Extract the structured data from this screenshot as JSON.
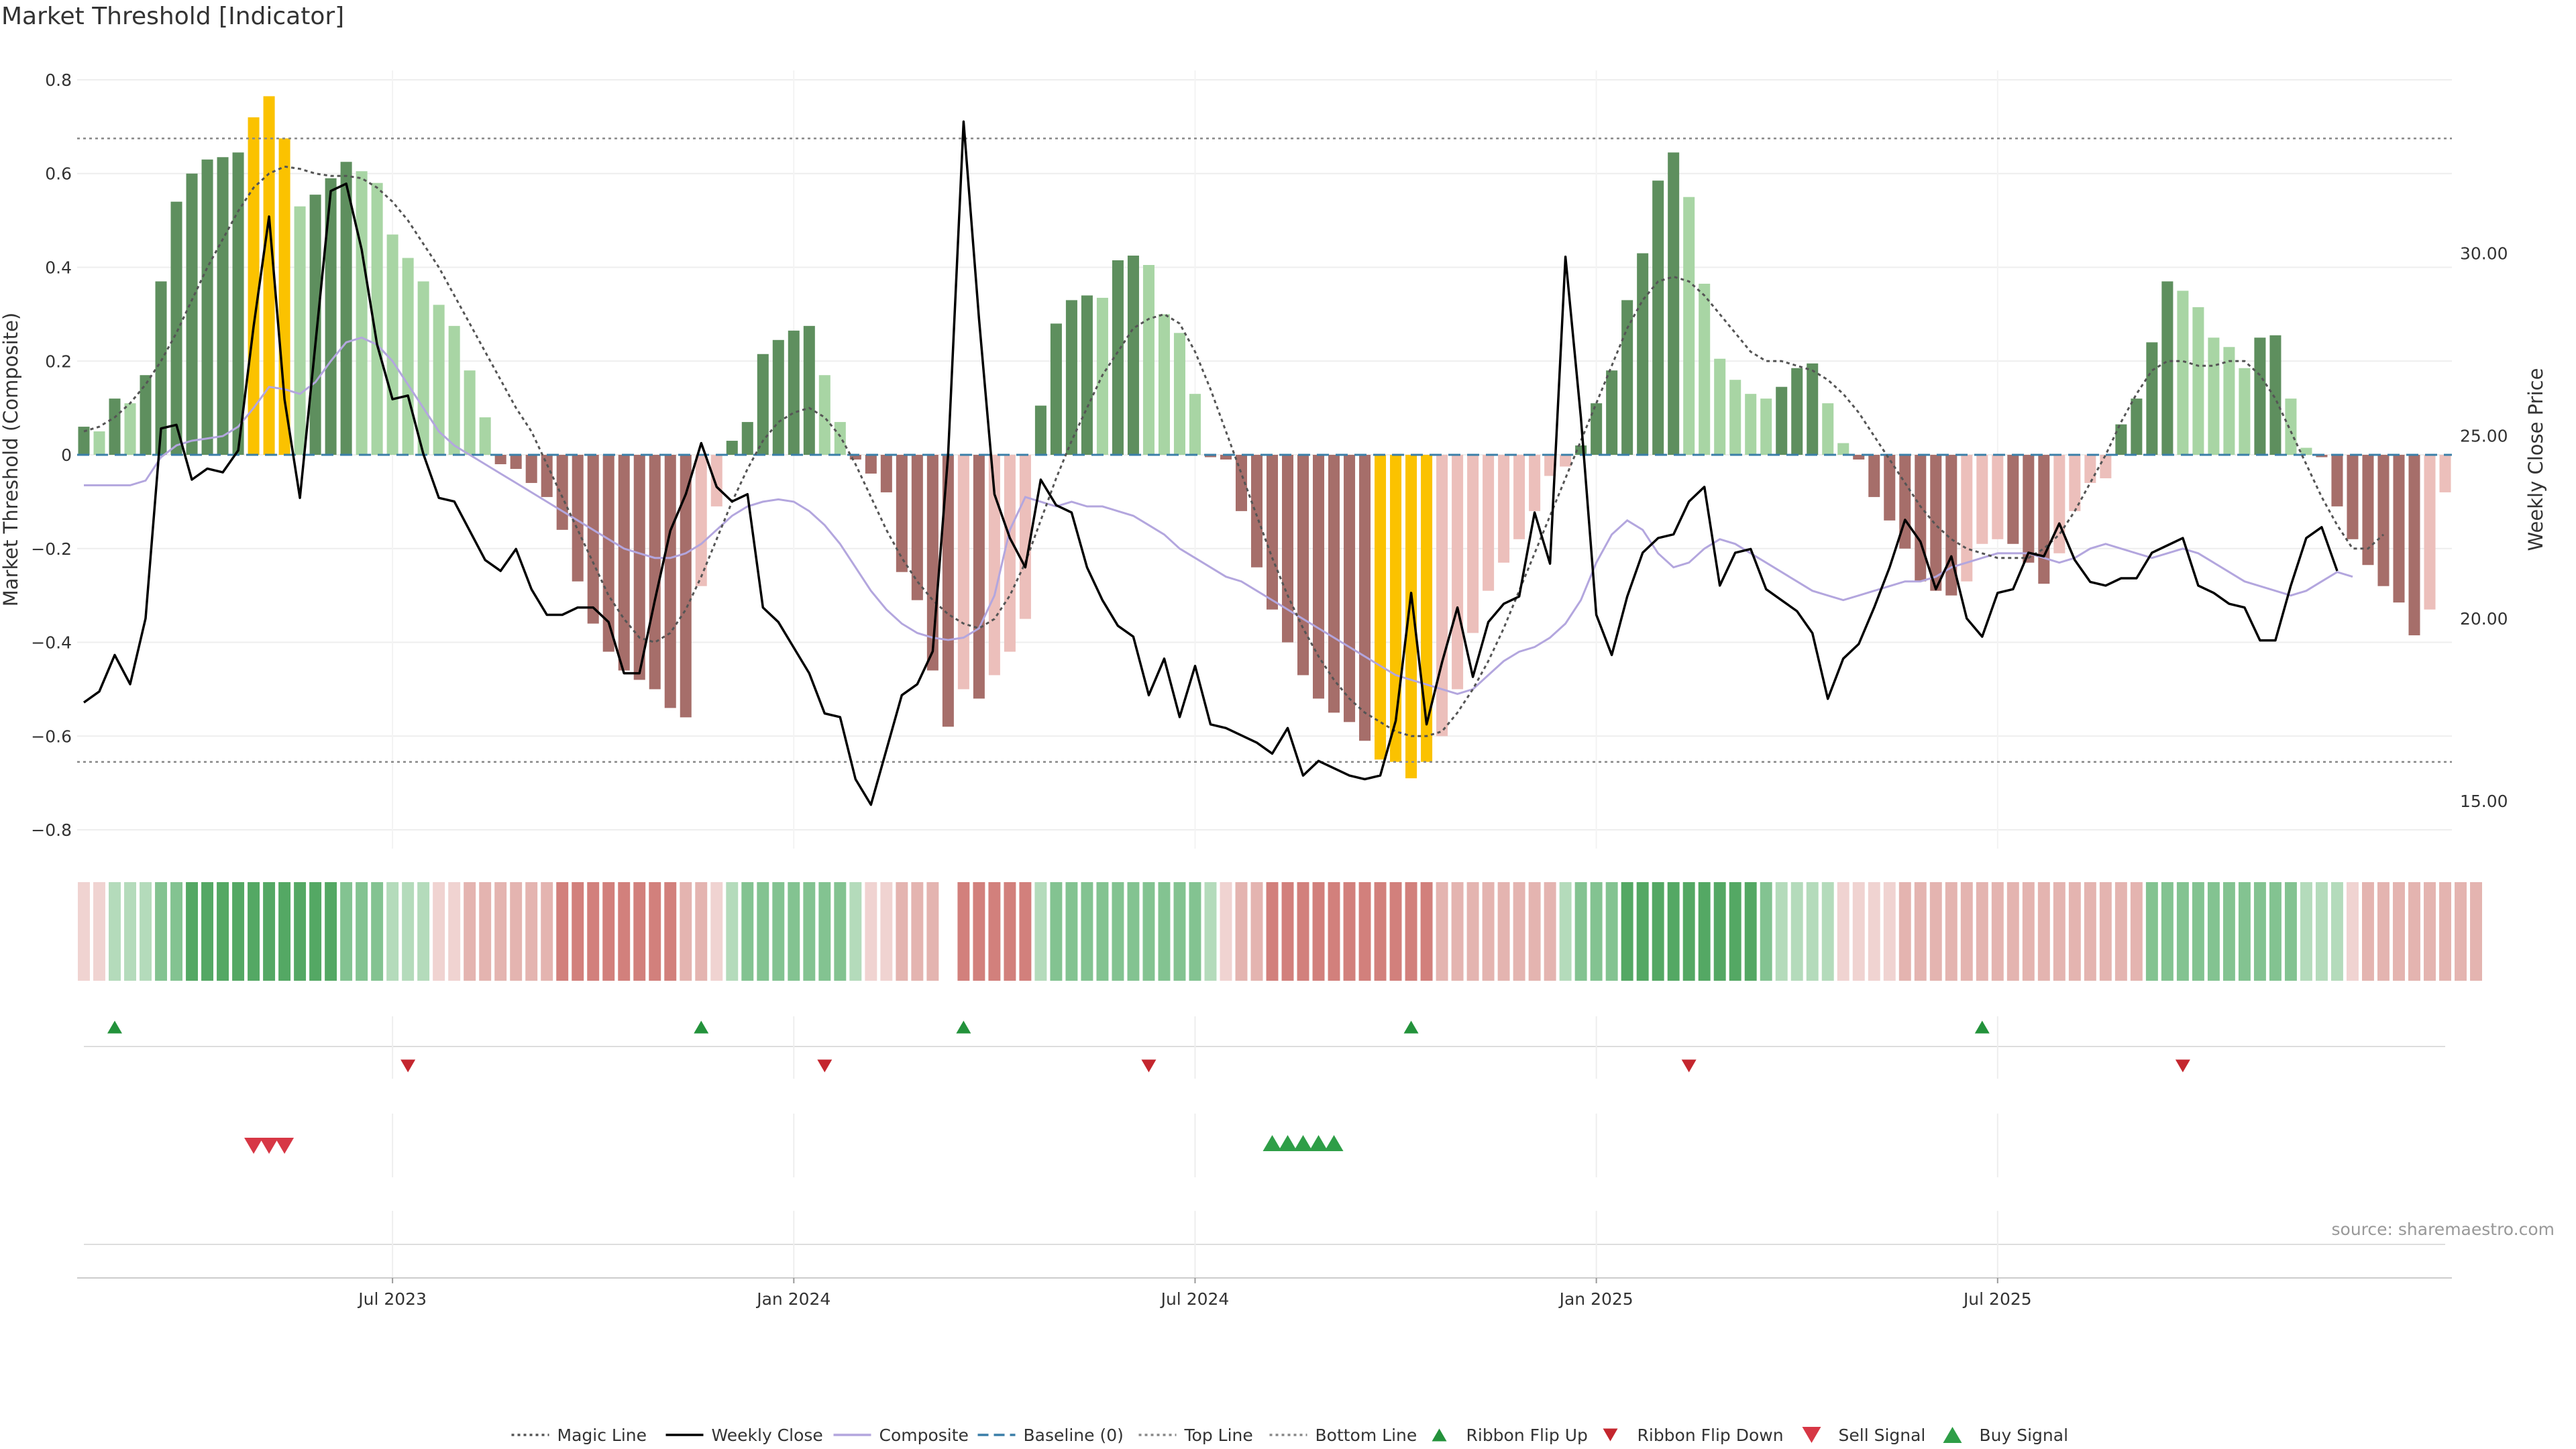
{
  "chart_title": "Market Threshold [Indicator]",
  "source_text": "source: sharemaestro.com",
  "chart_data": {
    "type": "bar",
    "title": "Market Threshold [Indicator]",
    "ylabel_left": "Market Threshold (Composite)",
    "ylabel_right": "Weekly Close Price",
    "ylim_left": [
      -0.84,
      0.82
    ],
    "ylim_right": [
      13.7,
      35.0
    ],
    "left_ticks": [
      0.8,
      0.6,
      0.4,
      0.2,
      0,
      -0.2,
      -0.4,
      -0.6,
      -0.8
    ],
    "left_tick_labels": [
      "0.8",
      "0.6",
      "0.4",
      "0.2",
      "0",
      "−0.2",
      "−0.4",
      "−0.6",
      "−0.8"
    ],
    "right_ticks": [
      30,
      25,
      20,
      15
    ],
    "right_tick_labels": [
      "30.00",
      "25.00",
      "20.00",
      "15.00"
    ],
    "x_ticks": [
      {
        "label": "Jul 2023",
        "week": 20
      },
      {
        "label": "Jan 2024",
        "week": 46
      },
      {
        "label": "Jul 2024",
        "week": 72
      },
      {
        "label": "Jan 2025",
        "week": 98
      },
      {
        "label": "Jul 2025",
        "week": 124
      }
    ],
    "top_line": 0.675,
    "bottom_line": -0.655,
    "baseline": 0,
    "bars": [
      0.06,
      0.05,
      0.12,
      0.11,
      0.17,
      0.37,
      0.54,
      0.6,
      0.63,
      0.635,
      0.645,
      0.72,
      0.765,
      0.675,
      0.53,
      0.555,
      0.59,
      0.625,
      0.605,
      0.58,
      0.47,
      0.42,
      0.37,
      0.32,
      0.275,
      0.18,
      0.08,
      -0.02,
      -0.03,
      -0.06,
      -0.09,
      -0.16,
      -0.27,
      -0.36,
      -0.42,
      -0.46,
      -0.48,
      -0.5,
      -0.54,
      -0.56,
      -0.28,
      -0.11,
      0.03,
      0.07,
      0.215,
      0.245,
      0.265,
      0.275,
      0.17,
      0.07,
      -0.01,
      -0.04,
      -0.08,
      -0.25,
      -0.31,
      -0.46,
      -0.58,
      -0.5,
      -0.52,
      -0.47,
      -0.42,
      -0.35,
      0.105,
      0.28,
      0.33,
      0.34,
      0.335,
      0.415,
      0.425,
      0.405,
      0.3,
      0.26,
      0.13,
      -0.005,
      -0.01,
      -0.12,
      -0.24,
      -0.33,
      -0.4,
      -0.47,
      -0.52,
      -0.55,
      -0.57,
      -0.61,
      -0.65,
      -0.655,
      -0.69,
      -0.655,
      -0.6,
      -0.5,
      -0.38,
      -0.29,
      -0.23,
      -0.18,
      -0.12,
      -0.045,
      -0.025,
      0.02,
      0.11,
      0.18,
      0.33,
      0.43,
      0.585,
      0.645,
      0.55,
      0.365,
      0.205,
      0.16,
      0.13,
      0.12,
      0.145,
      0.185,
      0.195,
      0.11,
      0.025,
      -0.01,
      -0.09,
      -0.14,
      -0.2,
      -0.27,
      -0.29,
      -0.3,
      -0.27,
      -0.19,
      -0.18,
      -0.19,
      -0.23,
      -0.275,
      -0.21,
      -0.12,
      -0.06,
      -0.05,
      0.065,
      0.12,
      0.24,
      0.37,
      0.35,
      0.315,
      0.25,
      0.23,
      0.185,
      0.25,
      0.255,
      0.12,
      0.015,
      -0.005,
      -0.11,
      -0.18,
      -0.235,
      -0.28,
      -0.315,
      -0.385,
      -0.33,
      -0.08
    ],
    "weekly_close": [
      17.7,
      18.0,
      19.0,
      18.2,
      20.0,
      25.2,
      25.3,
      23.8,
      24.1,
      24.0,
      24.6,
      28.0,
      31.0,
      26.0,
      23.3,
      27.5,
      31.7,
      31.9,
      30.1,
      27.5,
      26.0,
      26.1,
      24.5,
      23.3,
      23.2,
      22.4,
      21.6,
      21.3,
      21.9,
      20.8,
      20.1,
      20.1,
      20.3,
      20.3,
      19.9,
      18.5,
      18.5,
      20.5,
      22.4,
      23.4,
      24.8,
      23.6,
      23.2,
      23.4,
      20.3,
      19.9,
      19.2,
      18.5,
      17.4,
      17.3,
      15.6,
      14.9,
      16.4,
      17.9,
      18.2,
      19.1,
      24.5,
      33.6,
      28.2,
      23.4,
      22.2,
      21.4,
      23.8,
      23.1,
      22.9,
      21.4,
      20.5,
      19.8,
      19.5,
      17.9,
      18.9,
      17.3,
      18.7,
      17.1,
      17.0,
      16.8,
      16.6,
      16.3,
      17.0,
      15.7,
      16.1,
      15.9,
      15.7,
      15.6,
      15.7,
      17.2,
      20.7,
      17.1,
      18.8,
      20.3,
      18.4,
      19.9,
      20.4,
      20.6,
      22.9,
      21.5,
      29.9,
      25.5,
      20.1,
      19.0,
      20.6,
      21.8,
      22.2,
      22.3,
      23.2,
      23.6,
      20.9,
      21.8,
      21.9,
      20.8,
      20.5,
      20.2,
      19.6,
      17.8,
      18.9,
      19.3,
      20.3,
      21.4,
      22.7,
      22.1,
      20.8,
      21.7,
      20.0,
      19.5,
      20.7,
      20.8,
      21.8,
      21.7,
      22.6,
      21.6,
      21.0,
      20.9,
      21.1,
      21.1,
      21.8,
      22.0,
      22.2,
      20.9,
      20.7,
      20.4,
      20.3,
      19.4,
      19.4,
      20.9,
      22.2,
      22.5,
      21.3
    ],
    "composite": [
      -0.065,
      -0.065,
      -0.065,
      -0.065,
      -0.055,
      -0.005,
      0.02,
      0.03,
      0.035,
      0.04,
      0.06,
      0.1,
      0.145,
      0.14,
      0.13,
      0.155,
      0.2,
      0.24,
      0.25,
      0.235,
      0.2,
      0.15,
      0.1,
      0.05,
      0.02,
      0.0,
      -0.02,
      -0.04,
      -0.06,
      -0.08,
      -0.1,
      -0.12,
      -0.14,
      -0.16,
      -0.18,
      -0.2,
      -0.21,
      -0.22,
      -0.22,
      -0.21,
      -0.19,
      -0.16,
      -0.13,
      -0.11,
      -0.1,
      -0.095,
      -0.1,
      -0.12,
      -0.15,
      -0.19,
      -0.24,
      -0.29,
      -0.33,
      -0.36,
      -0.38,
      -0.39,
      -0.395,
      -0.39,
      -0.37,
      -0.3,
      -0.16,
      -0.09,
      -0.1,
      -0.11,
      -0.1,
      -0.11,
      -0.11,
      -0.12,
      -0.13,
      -0.15,
      -0.17,
      -0.2,
      -0.22,
      -0.24,
      -0.26,
      -0.27,
      -0.29,
      -0.31,
      -0.33,
      -0.35,
      -0.37,
      -0.39,
      -0.41,
      -0.43,
      -0.45,
      -0.47,
      -0.48,
      -0.49,
      -0.5,
      -0.51,
      -0.5,
      -0.47,
      -0.44,
      -0.42,
      -0.41,
      -0.39,
      -0.36,
      -0.31,
      -0.23,
      -0.17,
      -0.14,
      -0.16,
      -0.21,
      -0.24,
      -0.23,
      -0.2,
      -0.18,
      -0.19,
      -0.21,
      -0.23,
      -0.25,
      -0.27,
      -0.29,
      -0.3,
      -0.31,
      -0.3,
      -0.29,
      -0.28,
      -0.27,
      -0.27,
      -0.26,
      -0.24,
      -0.23,
      -0.22,
      -0.21,
      -0.21,
      -0.21,
      -0.22,
      -0.23,
      -0.22,
      -0.2,
      -0.19,
      -0.2,
      -0.21,
      -0.22,
      -0.21,
      -0.2,
      -0.21,
      -0.23,
      -0.25,
      -0.27,
      -0.28,
      -0.29,
      -0.3,
      -0.29,
      -0.27,
      -0.25,
      -0.26
    ],
    "magic_line": [
      0.05,
      0.06,
      0.08,
      0.11,
      0.15,
      0.2,
      0.26,
      0.33,
      0.4,
      0.46,
      0.52,
      0.57,
      0.6,
      0.615,
      0.61,
      0.6,
      0.595,
      0.595,
      0.59,
      0.57,
      0.54,
      0.5,
      0.45,
      0.4,
      0.34,
      0.28,
      0.22,
      0.16,
      0.1,
      0.05,
      -0.02,
      -0.09,
      -0.16,
      -0.23,
      -0.3,
      -0.35,
      -0.39,
      -0.4,
      -0.38,
      -0.33,
      -0.26,
      -0.18,
      -0.1,
      -0.03,
      0.03,
      0.07,
      0.09,
      0.1,
      0.08,
      0.04,
      -0.02,
      -0.09,
      -0.16,
      -0.22,
      -0.27,
      -0.31,
      -0.34,
      -0.36,
      -0.37,
      -0.35,
      -0.3,
      -0.23,
      -0.14,
      -0.05,
      0.03,
      0.1,
      0.17,
      0.22,
      0.27,
      0.29,
      0.3,
      0.28,
      0.22,
      0.14,
      0.05,
      -0.04,
      -0.13,
      -0.22,
      -0.3,
      -0.37,
      -0.43,
      -0.48,
      -0.52,
      -0.55,
      -0.57,
      -0.59,
      -0.6,
      -0.6,
      -0.59,
      -0.55,
      -0.5,
      -0.44,
      -0.37,
      -0.29,
      -0.21,
      -0.13,
      -0.05,
      0.03,
      0.11,
      0.19,
      0.27,
      0.33,
      0.37,
      0.38,
      0.37,
      0.34,
      0.3,
      0.26,
      0.22,
      0.2,
      0.2,
      0.19,
      0.18,
      0.16,
      0.13,
      0.09,
      0.04,
      -0.01,
      -0.06,
      -0.11,
      -0.15,
      -0.18,
      -0.2,
      -0.21,
      -0.22,
      -0.22,
      -0.22,
      -0.2,
      -0.17,
      -0.12,
      -0.06,
      0.0,
      0.07,
      0.13,
      0.18,
      0.2,
      0.2,
      0.19,
      0.19,
      0.2,
      0.2,
      0.17,
      0.12,
      0.05,
      -0.02,
      -0.09,
      -0.15,
      -0.2,
      -0.2,
      -0.17
    ],
    "ribbon": [
      -1,
      -1,
      1,
      1,
      1,
      2,
      2,
      3,
      3,
      3,
      3,
      3,
      3,
      3,
      3,
      3,
      3,
      2,
      2,
      2,
      1,
      1,
      1,
      -1,
      -1,
      -2,
      -2,
      -2,
      -2,
      -2,
      -2,
      -3,
      -3,
      -3,
      -3,
      -3,
      -3,
      -3,
      -3,
      -2,
      -2,
      -1,
      1,
      2,
      2,
      2,
      2,
      2,
      2,
      2,
      1,
      -1,
      -1,
      -2,
      -2,
      -2,
      0,
      -3,
      -3,
      -3,
      -3,
      -3,
      1,
      2,
      2,
      2,
      2,
      2,
      2,
      2,
      2,
      2,
      2,
      1,
      -1,
      -2,
      -2,
      -3,
      -3,
      -3,
      -3,
      -3,
      -3,
      -3,
      -3,
      -3,
      -3,
      -3,
      -2,
      -2,
      -2,
      -2,
      -2,
      -2,
      -2,
      -2,
      1,
      2,
      2,
      2,
      3,
      3,
      3,
      3,
      3,
      3,
      3,
      3,
      3,
      2,
      1,
      1,
      1,
      1,
      -1,
      -1,
      -1,
      -1,
      -2,
      -2,
      -2,
      -2,
      -2,
      -2,
      -2,
      -2,
      -2,
      -2,
      -2,
      -2,
      -2,
      -2,
      -2,
      -2,
      2,
      2,
      2,
      2,
      2,
      2,
      2,
      2,
      2,
      2,
      1,
      1,
      1,
      -1,
      -2,
      -2,
      -2,
      -2,
      -2,
      -2,
      -2,
      -2
    ],
    "ribbon_flip_up_weeks": [
      2,
      40,
      57,
      86,
      123
    ],
    "ribbon_flip_down_weeks": [
      21,
      48,
      69,
      104,
      136
    ],
    "sell_signal_weeks": [
      11,
      12,
      13
    ],
    "buy_signal_weeks": [
      77,
      78,
      79,
      80,
      81
    ],
    "legend": [
      {
        "label": "Magic Line",
        "kind": "dotted-line",
        "color": "#555555"
      },
      {
        "label": "Weekly Close",
        "kind": "line",
        "color": "#000000"
      },
      {
        "label": "Composite",
        "kind": "line",
        "color": "#b3a6de"
      },
      {
        "label": "Baseline (0)",
        "kind": "dashed-line",
        "color": "#3b7fa8"
      },
      {
        "label": "Top Line",
        "kind": "dotted-line",
        "color": "#888888"
      },
      {
        "label": "Bottom Line",
        "kind": "dotted-line",
        "color": "#888888"
      },
      {
        "label": "Ribbon Flip Up",
        "kind": "triangle-up",
        "color": "#23923b"
      },
      {
        "label": "Ribbon Flip Down",
        "kind": "triangle-down",
        "color": "#c4262e"
      },
      {
        "label": "Sell Signal",
        "kind": "triangle-down-large",
        "color": "#d73745"
      },
      {
        "label": "Buy Signal",
        "kind": "triangle-up-large",
        "color": "#2e9e47"
      }
    ],
    "colors": {
      "bar_dark_green": "#5e8f5e",
      "bar_light_green": "#a8d5a4",
      "bar_dark_red": "#a66e6a",
      "bar_light_red": "#ecbfbb",
      "bar_extreme": "#fbc200"
    }
  }
}
